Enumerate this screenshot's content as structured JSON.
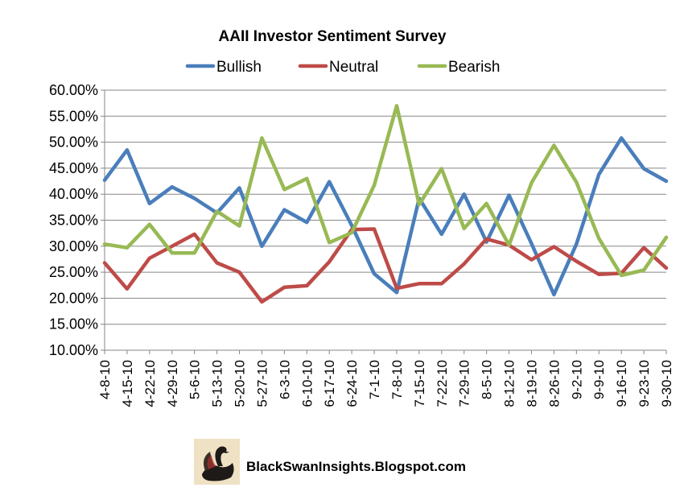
{
  "chart_data": {
    "type": "line",
    "title": "AAII Investor Sentiment Survey",
    "categories": [
      "4-8-10",
      "4-15-10",
      "4-22-10",
      "4-29-10",
      "5-6-10",
      "5-13-10",
      "5-20-10",
      "5-27-10",
      "6-3-10",
      "6-10-10",
      "6-17-10",
      "6-24-10",
      "7-1-10",
      "7-8-10",
      "7-15-10",
      "7-22-10",
      "7-29-10",
      "8-5-10",
      "8-12-10",
      "8-19-10",
      "8-26-10",
      "9-2-10",
      "9-9-10",
      "9-16-10",
      "9-23-10",
      "9-30-10"
    ],
    "series": [
      {
        "name": "Bullish",
        "color": "#4a7ebb",
        "values": [
          42.7,
          48.5,
          38.2,
          41.4,
          39.2,
          36.4,
          41.2,
          30.0,
          37.0,
          34.6,
          42.4,
          34.0,
          24.7,
          21.1,
          39.2,
          32.3,
          40.0,
          30.8,
          39.8,
          30.5,
          20.7,
          30.4,
          43.8,
          50.8,
          44.9,
          42.5
        ]
      },
      {
        "name": "Neutral",
        "color": "#be4b48",
        "values": [
          26.8,
          21.8,
          27.7,
          30.0,
          32.3,
          26.8,
          25.0,
          19.3,
          22.1,
          22.4,
          27.0,
          33.2,
          33.3,
          21.9,
          22.8,
          22.8,
          26.6,
          31.4,
          30.2,
          27.4,
          29.9,
          27.1,
          24.6,
          24.8,
          29.7,
          25.8
        ]
      },
      {
        "name": "Bearish",
        "color": "#98b954",
        "values": [
          30.4,
          29.7,
          34.2,
          28.7,
          28.7,
          36.7,
          33.9,
          50.8,
          40.9,
          43.0,
          30.7,
          32.6,
          41.7,
          57.0,
          38.0,
          44.9,
          33.4,
          38.2,
          30.2,
          42.2,
          49.4,
          42.3,
          31.5,
          24.4,
          25.4,
          31.7
        ]
      }
    ],
    "ylim": [
      10,
      60
    ],
    "ytick_step": 5,
    "y_format": "percent_2dp",
    "grid": true,
    "legend_position": "top"
  },
  "footer": {
    "text": "BlackSwanInsights.Blogspot.com",
    "logo": "black-swan-logo"
  }
}
